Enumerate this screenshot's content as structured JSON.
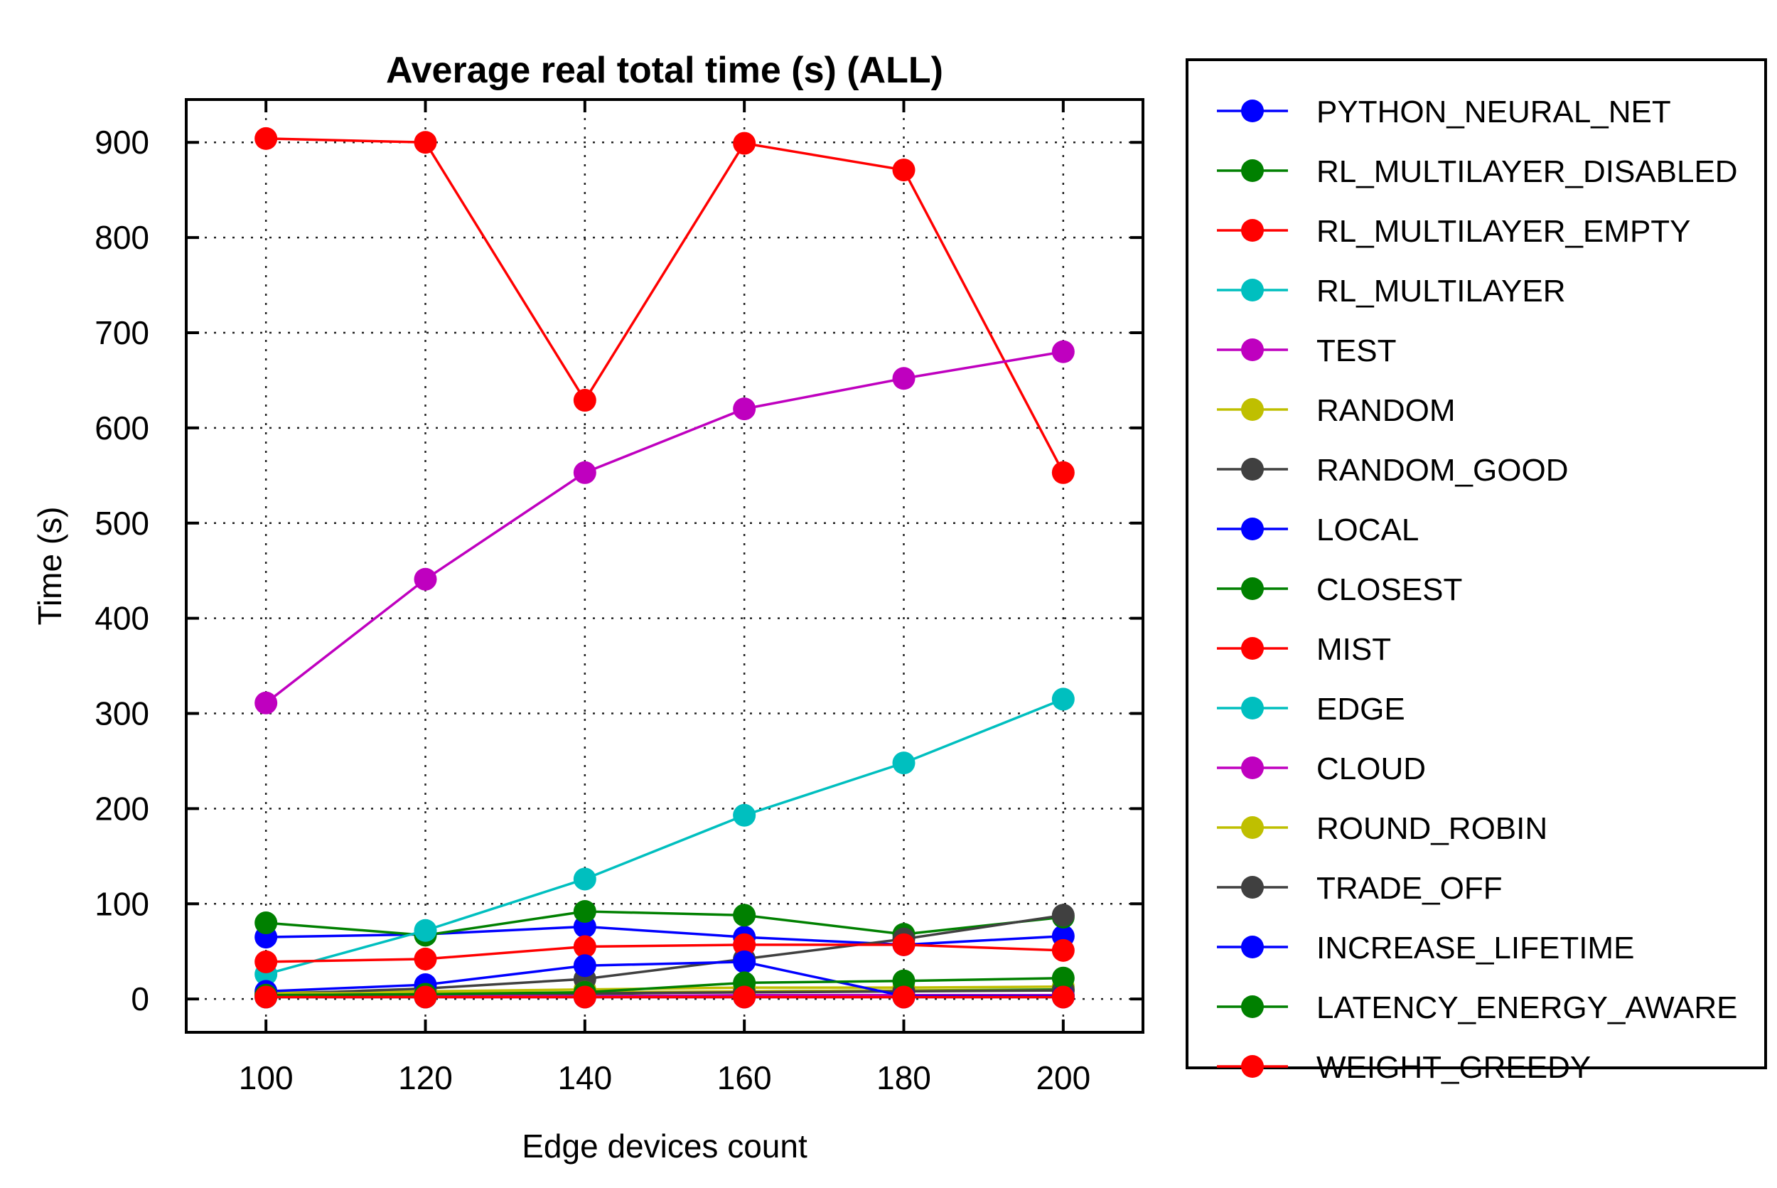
{
  "chart_data": {
    "type": "line",
    "title": "Average real total time (s) (ALL)",
    "xlabel": "Edge devices count",
    "ylabel": "Time (s)",
    "x": [
      100,
      120,
      140,
      160,
      180,
      200
    ],
    "xlim": [
      90,
      210
    ],
    "ylim": [
      -35,
      945
    ],
    "xticks": [
      "100",
      "120",
      "140",
      "160",
      "180",
      "200"
    ],
    "yticks": [
      "0",
      "100",
      "200",
      "300",
      "400",
      "500",
      "600",
      "700",
      "800",
      "900"
    ],
    "grid": true,
    "legend_position": "outside-right",
    "series": [
      {
        "name": "PYTHON_NEURAL_NET",
        "color": "#0000ff",
        "values": [
          65,
          68,
          76,
          65,
          57,
          66
        ]
      },
      {
        "name": "RL_MULTILAYER_DISABLED",
        "color": "#008000",
        "values": [
          80,
          67,
          92,
          88,
          68,
          86
        ]
      },
      {
        "name": "RL_MULTILAYER_EMPTY",
        "color": "#ff0000",
        "values": [
          904,
          900,
          629,
          899,
          871,
          553
        ]
      },
      {
        "name": "RL_MULTILAYER",
        "color": "#00bfbf",
        "values": [
          26,
          72,
          126,
          193,
          248,
          315
        ]
      },
      {
        "name": "TEST",
        "color": "#bf00bf",
        "values": [
          311,
          441,
          553,
          620,
          652,
          680
        ]
      },
      {
        "name": "RANDOM",
        "color": "#bfbf00",
        "values": [
          7,
          8,
          10,
          12,
          12,
          13
        ]
      },
      {
        "name": "RANDOM_GOOD",
        "color": "#404040",
        "values": [
          5,
          11,
          21,
          42,
          63,
          88
        ]
      },
      {
        "name": "LOCAL",
        "color": "#0000ff",
        "values": [
          2,
          2,
          2,
          2,
          2,
          2
        ]
      },
      {
        "name": "CLOSEST",
        "color": "#008000",
        "values": [
          3,
          4,
          5,
          8,
          9,
          10
        ]
      },
      {
        "name": "MIST",
        "color": "#ff0000",
        "values": [
          39,
          42,
          55,
          57,
          57,
          51
        ]
      },
      {
        "name": "EDGE",
        "color": "#00bfbf",
        "values": [
          2,
          2,
          3,
          3,
          3,
          3
        ]
      },
      {
        "name": "CLOUD",
        "color": "#bf00bf",
        "values": [
          3,
          3,
          3,
          4,
          4,
          4
        ]
      },
      {
        "name": "ROUND_ROBIN",
        "color": "#bfbf00",
        "values": [
          6,
          6,
          7,
          8,
          9,
          9
        ]
      },
      {
        "name": "TRADE_OFF",
        "color": "#404040",
        "values": [
          4,
          5,
          6,
          7,
          8,
          9
        ]
      },
      {
        "name": "INCREASE_LIFETIME",
        "color": "#0000ff",
        "values": [
          8,
          15,
          35,
          39,
          3,
          3
        ]
      },
      {
        "name": "LATENCY_ENERGY_AWARE",
        "color": "#008000",
        "values": [
          4,
          5,
          7,
          17,
          19,
          22
        ]
      },
      {
        "name": "WEIGHT_GREEDY",
        "color": "#ff0000",
        "values": [
          2,
          2,
          2,
          2,
          2,
          2
        ]
      }
    ]
  }
}
